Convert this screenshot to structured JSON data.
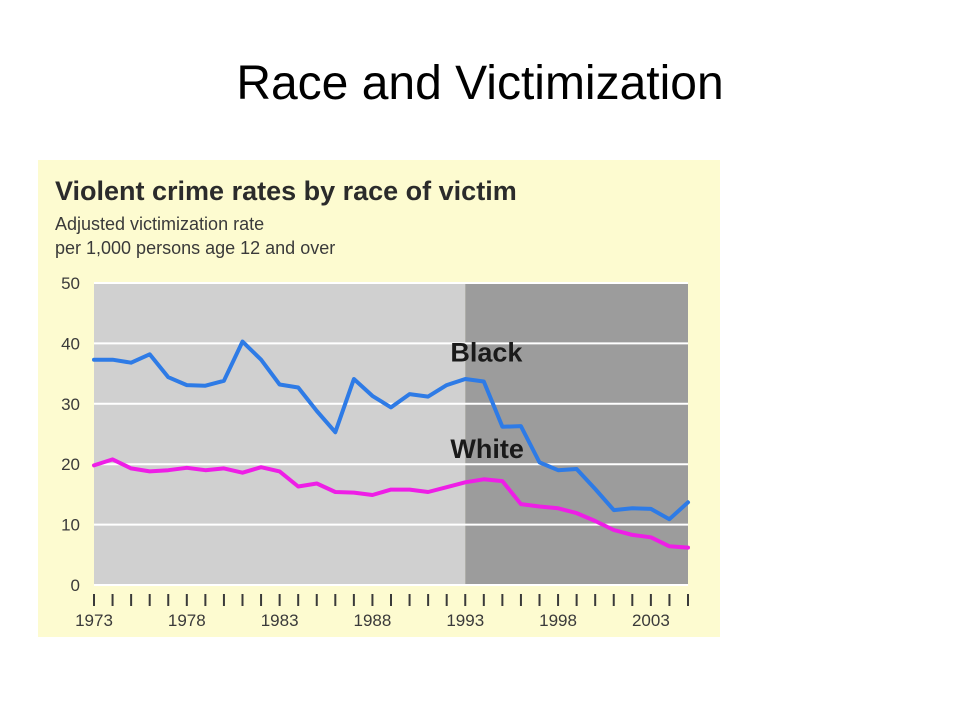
{
  "slide": {
    "title": "Race and Victimization"
  },
  "colors": {
    "panel_background": "#fdfbd0",
    "plot_light": "#d0d0d0",
    "plot_dark": "#9c9c9c",
    "gridline": "#ffffff",
    "black_series": "#2e7be6",
    "white_series": "#ee1ee6"
  },
  "chart_data": {
    "type": "line",
    "title": "Violent crime rates by race of victim",
    "subtitle": [
      "Adjusted victimization rate",
      "per 1,000 persons age 12 and over"
    ],
    "xlabel": "",
    "ylabel": "",
    "x": [
      1973,
      1974,
      1975,
      1976,
      1977,
      1978,
      1979,
      1980,
      1981,
      1982,
      1983,
      1984,
      1985,
      1986,
      1987,
      1988,
      1989,
      1990,
      1991,
      1992,
      1993,
      1994,
      1995,
      1996,
      1997,
      1998,
      1999,
      2000,
      2001,
      2002,
      2003,
      2004,
      2005
    ],
    "xlim": [
      1973,
      2005
    ],
    "ylim": [
      0,
      50
    ],
    "y_ticks": [
      0,
      10,
      20,
      30,
      40,
      50
    ],
    "x_tick_labels": [
      {
        "x": 1973,
        "label": "1973"
      },
      {
        "x": 1978,
        "label": "1978"
      },
      {
        "x": 1983,
        "label": "1983"
      },
      {
        "x": 1988,
        "label": "1988"
      },
      {
        "x": 1993,
        "label": "1993"
      },
      {
        "x": 1998,
        "label": "1998"
      },
      {
        "x": 2003,
        "label": "2003"
      }
    ],
    "shaded_region": {
      "from": 1993,
      "to": 2005
    },
    "grid": true,
    "series": [
      {
        "name": "Black",
        "color": "#2e7be6",
        "label_at": {
          "x": 1992.2,
          "y": 37
        },
        "values": [
          37.3,
          37.3,
          36.8,
          38.2,
          34.4,
          33.1,
          33.0,
          33.8,
          40.3,
          37.3,
          33.2,
          32.7,
          28.8,
          25.3,
          34.1,
          31.3,
          29.4,
          31.6,
          31.2,
          33.1,
          34.1,
          33.7,
          26.2,
          26.3,
          20.3,
          19.0,
          19.2,
          15.9,
          12.4,
          12.7,
          12.6,
          10.9,
          13.7
        ]
      },
      {
        "name": "White",
        "color": "#ee1ee6",
        "label_at": {
          "x": 1992.2,
          "y": 21
        },
        "values": [
          19.8,
          20.8,
          19.3,
          18.8,
          19.0,
          19.4,
          19.0,
          19.3,
          18.6,
          19.5,
          18.8,
          16.3,
          16.8,
          15.4,
          15.3,
          14.9,
          15.8,
          15.8,
          15.4,
          16.2,
          17.0,
          17.5,
          17.2,
          13.4,
          13.0,
          12.7,
          11.9,
          10.6,
          9.1,
          8.3,
          7.9,
          6.4,
          6.2
        ]
      }
    ]
  }
}
